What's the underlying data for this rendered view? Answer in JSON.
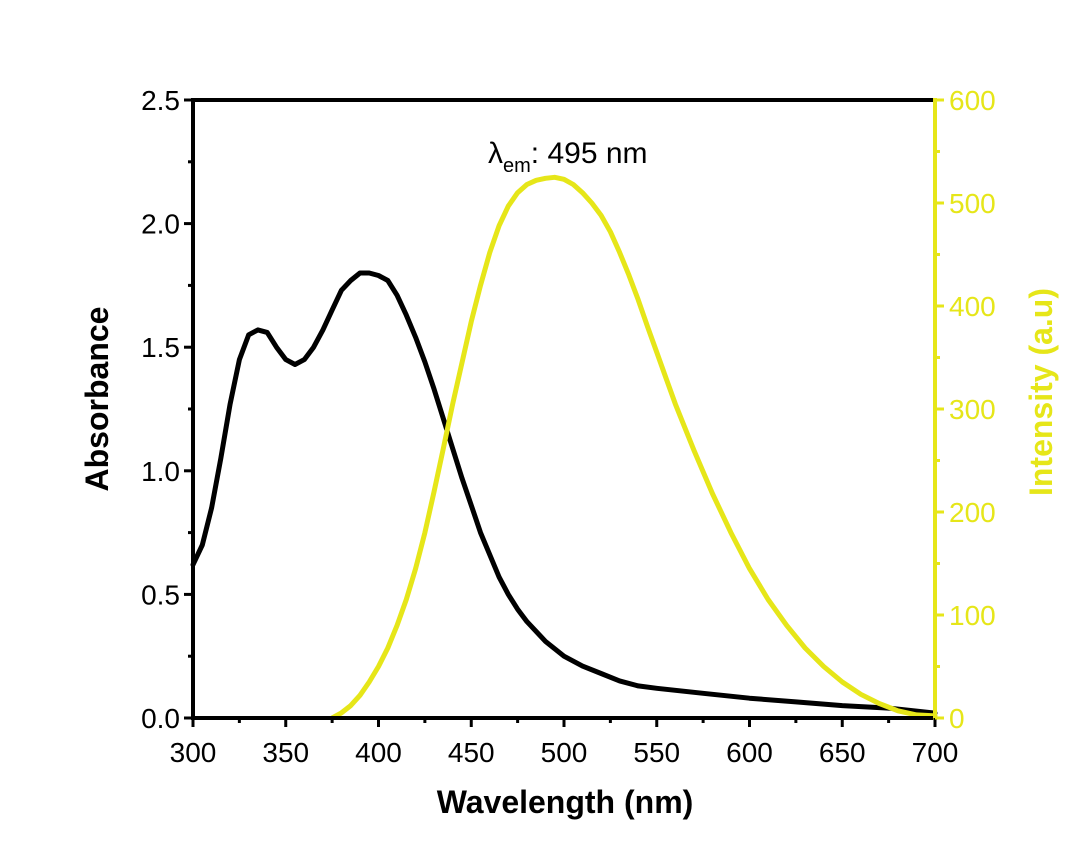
{
  "chart_data": {
    "type": "line",
    "xlabel": "Wavelength (nm)",
    "ylabel_left": "Absorbance",
    "ylabel_right": "Intensity (a.u)",
    "xlim": [
      300,
      700
    ],
    "ylim_left": [
      0,
      2.5
    ],
    "ylim_right": [
      0,
      600
    ],
    "x_ticks": [
      300,
      350,
      400,
      450,
      500,
      550,
      600,
      650,
      700
    ],
    "y_left_ticks": [
      "0.0",
      "0.5",
      "1.0",
      "1.5",
      "2.0",
      "2.5"
    ],
    "y_right_ticks": [
      "0",
      "100",
      "200",
      "300",
      "400",
      "500",
      "600"
    ],
    "grid": false,
    "annotation": {
      "symbol": "λ",
      "subscript": "em",
      "text": ": 495 nm"
    },
    "colors": {
      "absorbance": "#000000",
      "intensity": "#e6e619",
      "frame": "#000000"
    },
    "series": [
      {
        "axis": "left",
        "x": [
          300,
          305,
          310,
          315,
          320,
          325,
          330,
          335,
          340,
          345,
          350,
          355,
          360,
          365,
          370,
          375,
          380,
          385,
          390,
          395,
          400,
          405,
          410,
          415,
          420,
          425,
          430,
          435,
          440,
          445,
          450,
          455,
          460,
          465,
          470,
          475,
          480,
          490,
          500,
          510,
          520,
          530,
          540,
          550,
          575,
          600,
          625,
          650,
          675,
          700
        ],
        "y": [
          0.62,
          0.7,
          0.85,
          1.05,
          1.27,
          1.45,
          1.55,
          1.57,
          1.56,
          1.5,
          1.45,
          1.43,
          1.45,
          1.5,
          1.57,
          1.65,
          1.73,
          1.77,
          1.8,
          1.8,
          1.79,
          1.77,
          1.71,
          1.63,
          1.54,
          1.44,
          1.33,
          1.21,
          1.09,
          0.97,
          0.86,
          0.75,
          0.66,
          0.57,
          0.5,
          0.44,
          0.39,
          0.31,
          0.25,
          0.21,
          0.18,
          0.15,
          0.13,
          0.12,
          0.1,
          0.08,
          0.065,
          0.05,
          0.04,
          0.02
        ]
      },
      {
        "axis": "right",
        "x": [
          375,
          380,
          385,
          390,
          395,
          400,
          405,
          410,
          415,
          420,
          425,
          430,
          435,
          440,
          445,
          450,
          455,
          460,
          465,
          470,
          475,
          480,
          485,
          490,
          495,
          500,
          505,
          510,
          515,
          520,
          525,
          530,
          535,
          540,
          545,
          550,
          555,
          560,
          570,
          580,
          590,
          600,
          610,
          620,
          630,
          640,
          650,
          660,
          670,
          680,
          690,
          700
        ],
        "y": [
          0,
          5,
          12,
          22,
          35,
          50,
          68,
          90,
          115,
          145,
          180,
          220,
          262,
          305,
          345,
          385,
          420,
          452,
          478,
          497,
          510,
          518,
          522,
          524,
          525,
          523,
          518,
          510,
          500,
          488,
          472,
          452,
          430,
          406,
          380,
          355,
          330,
          305,
          260,
          218,
          180,
          145,
          115,
          90,
          68,
          50,
          35,
          23,
          14,
          7,
          3,
          2
        ]
      }
    ]
  }
}
